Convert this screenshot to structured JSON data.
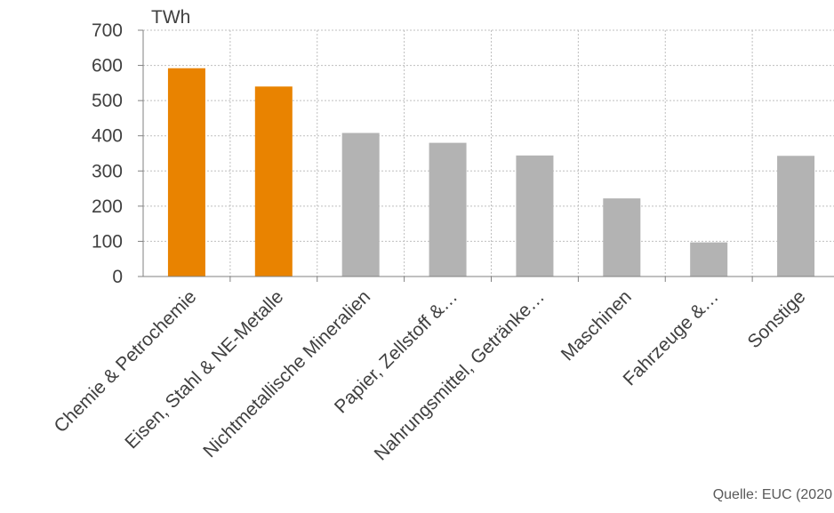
{
  "chart_data": {
    "type": "bar",
    "title": "",
    "xlabel": "",
    "ylabel": "TWh",
    "ylim": [
      0,
      700
    ],
    "yticks": [
      0,
      100,
      200,
      300,
      400,
      500,
      600,
      700
    ],
    "grid": true,
    "categories": [
      "Chemie & Petrochemie",
      "Eisen, Stahl & NE-Metalle",
      "Nichtmetallische Mineralien",
      "Papier, Zellstoff &…",
      "Nahrungsmittel, Getränke…",
      "Maschinen",
      "Fahrzeuge &…",
      "Sonstige"
    ],
    "values": [
      592,
      540,
      408,
      380,
      344,
      222,
      97,
      343
    ],
    "colors": [
      "#E98300",
      "#E98300",
      "#B3B3B3",
      "#B3B3B3",
      "#B3B3B3",
      "#B3B3B3",
      "#B3B3B3",
      "#B3B3B3"
    ]
  },
  "source": "Quelle: EUC (2020"
}
